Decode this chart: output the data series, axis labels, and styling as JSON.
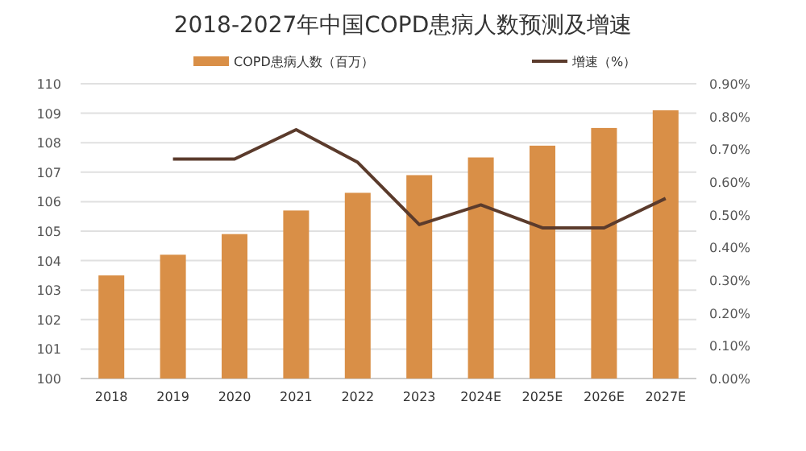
{
  "chart_data": {
    "type": "bar",
    "title": "2018-2027年中国COPD患病人数预测及增速",
    "categories": [
      "2018",
      "2019",
      "2020",
      "2021",
      "2022",
      "2023",
      "2024E",
      "2025E",
      "2026E",
      "2027E"
    ],
    "series": [
      {
        "name": "COPD患病人数（百万）",
        "color": "#d98f47",
        "values": [
          103.5,
          104.2,
          104.9,
          105.7,
          106.3,
          106.9,
          107.5,
          107.9,
          108.5,
          109.1
        ]
      },
      {
        "name": "增速（%）",
        "type": "line",
        "axis": "y2",
        "color": "#5b3b2c",
        "values": [
          null,
          0.67,
          0.67,
          0.76,
          0.66,
          0.47,
          0.53,
          0.46,
          0.46,
          0.55
        ]
      }
    ],
    "ylim": [
      100,
      110
    ],
    "yticks": [
      100,
      101,
      102,
      103,
      104,
      105,
      106,
      107,
      108,
      109,
      110
    ],
    "y2lim": [
      0,
      0.9
    ],
    "y2ticks": [
      {
        "value": 0,
        "label": "0.00%"
      },
      {
        "value": 0.1,
        "label": "0.10%"
      },
      {
        "value": 0.2,
        "label": "0.20%"
      },
      {
        "value": 0.3,
        "label": "0.30%"
      },
      {
        "value": 0.4,
        "label": "0.40%"
      },
      {
        "value": 0.5,
        "label": "0.50%"
      },
      {
        "value": 0.6,
        "label": "0.60%"
      },
      {
        "value": 0.7,
        "label": "0.70%"
      },
      {
        "value": 0.8,
        "label": "0.80%"
      },
      {
        "value": 0.9,
        "label": "0.90%"
      }
    ],
    "grid": "y",
    "legend": "top"
  }
}
